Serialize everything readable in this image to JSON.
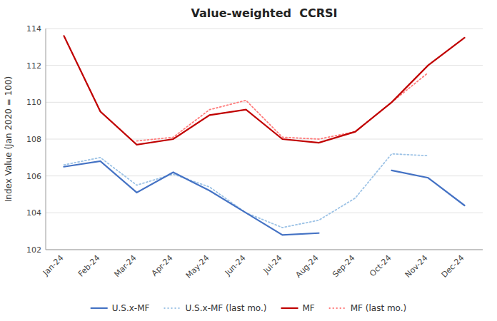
{
  "chart_data": {
    "type": "line",
    "title": "Value-weighted  CCRSI",
    "y_label": "Index Value (Jan 2020 = 100)",
    "categories": [
      "Jan-24",
      "Feb-24",
      "Mar-24",
      "Apr-24",
      "May-24",
      "Jun-24",
      "Jul-24",
      "Aug-24",
      "Sep-24",
      "Oct-24",
      "Nov-24",
      "Dec-24"
    ],
    "series": [
      {
        "name": "U.S.x-MF",
        "color": "#4472C4",
        "line_style": "solid",
        "values": [
          106.5,
          106.8,
          105.1,
          106.2,
          105.2,
          104.0,
          102.8,
          102.9,
          null,
          106.3,
          105.9,
          104.4
        ]
      },
      {
        "name": "U.S.x-MF (last mo.)",
        "color": "#9DC3E6",
        "line_style": "dotted",
        "values": [
          106.6,
          107.0,
          105.5,
          106.1,
          105.4,
          104.0,
          103.2,
          103.6,
          104.8,
          107.2,
          107.1,
          null
        ]
      },
      {
        "name": "MF",
        "color": "#C00000",
        "line_style": "solid",
        "values": [
          113.6,
          109.5,
          107.7,
          108.0,
          109.3,
          109.6,
          108.0,
          107.8,
          108.4,
          110.0,
          112.0,
          113.5
        ]
      },
      {
        "name": "MF (last mo.)",
        "color": "#FF7C7C",
        "line_style": "dotted",
        "values": [
          null,
          null,
          107.9,
          108.1,
          109.6,
          110.1,
          108.1,
          108.0,
          108.4,
          110.0,
          111.6,
          null
        ]
      }
    ],
    "ylim": [
      102,
      114
    ],
    "yticks": [
      102,
      104,
      106,
      108,
      110,
      112,
      114
    ],
    "grid": true,
    "legend": "bottom"
  }
}
